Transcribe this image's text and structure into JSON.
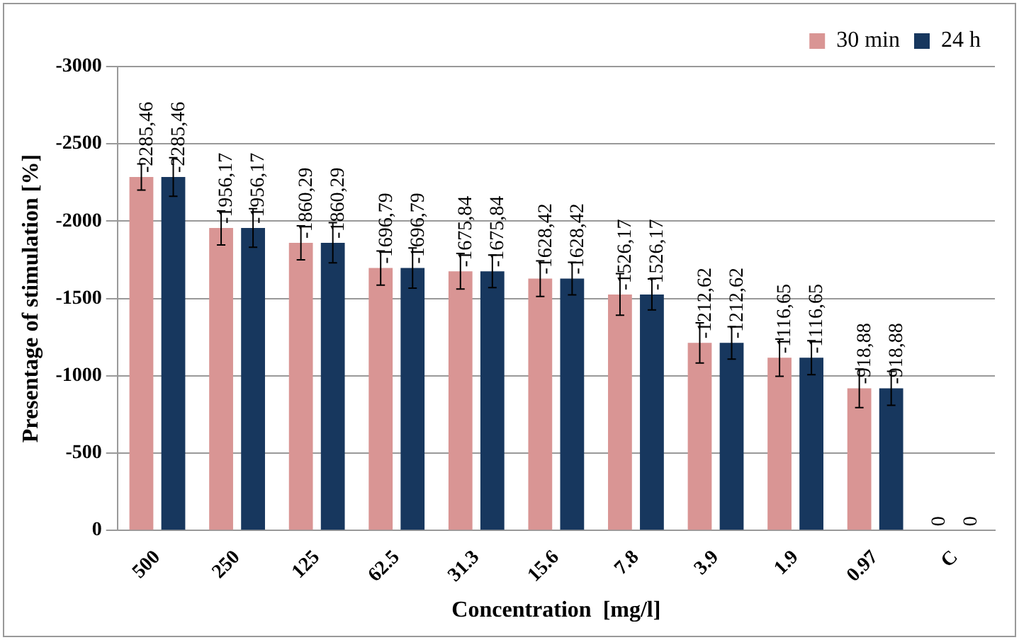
{
  "chart_data": {
    "type": "bar",
    "xlabel": "Concentration  [mg/l]",
    "ylabel": "Presentage of stimulation [%]",
    "categories": [
      "500",
      "250",
      "125",
      "62.5",
      "31.3",
      "15.6",
      "7.8",
      "3.9",
      "1.9",
      "0.97",
      "C"
    ],
    "series": [
      {
        "name": "30 min",
        "color": "#d99594",
        "values": [
          -2285.46,
          -1956.17,
          -1860.29,
          -1696.79,
          -1675.84,
          -1628.42,
          -1526.17,
          -1212.62,
          -1116.65,
          -918.88,
          0
        ],
        "errors": [
          85,
          110,
          110,
          110,
          115,
          115,
          135,
          130,
          120,
          125,
          null
        ],
        "value_labels": [
          "-2285,46",
          "-1956,17",
          "-1860,29",
          "-1696,79",
          "-1675,84",
          "-1628,42",
          "-1526,17",
          "-1212,62",
          "-1116,65",
          "-918,88",
          "0"
        ]
      },
      {
        "name": "24 h",
        "color": "#17375e",
        "values": [
          -2285.46,
          -1956.17,
          -1860.29,
          -1696.79,
          -1675.84,
          -1628.42,
          -1526.17,
          -1212.62,
          -1116.65,
          -918.88,
          0
        ],
        "errors": [
          125,
          125,
          130,
          130,
          105,
          105,
          100,
          105,
          110,
          110,
          null
        ],
        "value_labels": [
          "-2285,46",
          "-1956,17",
          "-1860,29",
          "-1696,79",
          "-1675,84",
          "-1628,42",
          "-1526,17",
          "-1212,62",
          "-1116,65",
          "-918,88",
          "0"
        ]
      }
    ],
    "ylim": [
      0,
      -3000
    ],
    "yticks": [
      0,
      -500,
      -1000,
      -1500,
      -2000,
      -2500,
      -3000
    ],
    "grid": "y",
    "legend": "top right"
  }
}
